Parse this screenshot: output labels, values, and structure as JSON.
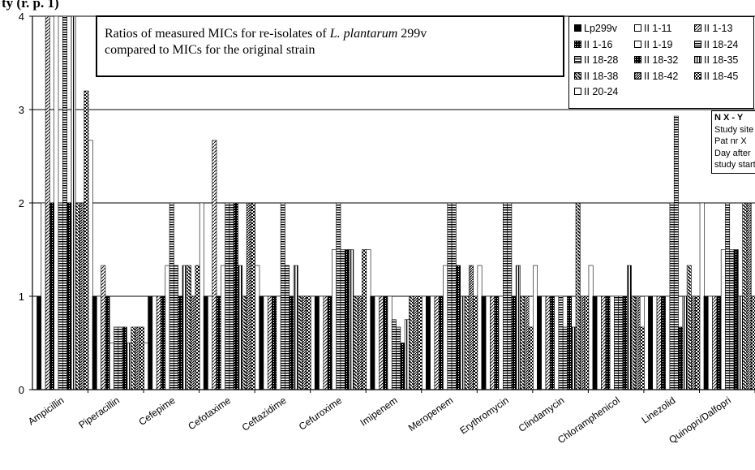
{
  "page_title": "ty (r. p. 1)",
  "chart_data": {
    "type": "bar",
    "title": "Ratios of measured MICs for re-isolates of L. plantarum 299v compared to MICs for the original strain",
    "title_plain": "Ratios of measured MICs for re-isolates of ",
    "title_italic": "L. plantarum",
    "title_tail": " 299v",
    "title_line2": "compared to MICs for the original strain",
    "ylim": [
      0,
      4
    ],
    "yticks": [
      "0",
      "1",
      "2",
      "3",
      "4"
    ],
    "grid": true,
    "legend_position": "top-right",
    "categories": [
      "Ampicillin",
      "Piperacillin",
      "Cefepime",
      "Cefotaxime",
      "Ceftazidime",
      "Cefuroxime",
      "Imipenem",
      "Meropenem",
      "Erythromycin",
      "Clindamycin",
      "Chloramphenicol",
      "Linezolid",
      "Quinopri/Dalfopri"
    ],
    "series": [
      {
        "name": "Lp299v",
        "pattern": "solid",
        "values": [
          1,
          1,
          1,
          1,
          1,
          1,
          1,
          1,
          1,
          1,
          1,
          1,
          1
        ]
      },
      {
        "name": "II 1-11",
        "pattern": "white",
        "values": [
          2,
          1,
          1,
          1,
          1,
          1,
          1,
          1,
          1,
          1,
          1,
          1,
          1
        ]
      },
      {
        "name": "II 1-13",
        "pattern": "diag",
        "values": [
          4,
          1.33,
          1,
          2.67,
          1,
          1,
          1,
          1,
          1,
          1,
          1,
          1,
          1
        ]
      },
      {
        "name": "II 1-16",
        "pattern": "dot",
        "values": [
          2,
          1,
          1,
          1,
          1,
          1,
          1,
          1,
          1,
          1,
          1,
          1,
          1
        ]
      },
      {
        "name": "II 1-19",
        "pattern": "white",
        "values": [
          4,
          0.5,
          1.33,
          1.33,
          1,
          1.5,
          1,
          1.33,
          1,
          1,
          1,
          1,
          1.5
        ]
      },
      {
        "name": "II 18-24",
        "pattern": "hstripe",
        "values": [
          2,
          0.67,
          2,
          2,
          2,
          2,
          0.75,
          2,
          2,
          1,
          1,
          2,
          2
        ]
      },
      {
        "name": "II 18-28",
        "pattern": "hstripe",
        "values": [
          4,
          0.67,
          1.33,
          2,
          1.33,
          1.5,
          0.67,
          2,
          2,
          0.67,
          1,
          2.93,
          1.5
        ]
      },
      {
        "name": "II 18-32",
        "pattern": "dot",
        "values": [
          2,
          0.67,
          1,
          2,
          1,
          1.5,
          0.5,
          1.33,
          1,
          1,
          1,
          0.67,
          1.5
        ]
      },
      {
        "name": "II 18-35",
        "pattern": "vstripe",
        "values": [
          4,
          0.5,
          1.33,
          1.33,
          1.33,
          1.5,
          0.75,
          1,
          1.33,
          0.67,
          1.33,
          1,
          1
        ]
      },
      {
        "name": "II 18-38",
        "pattern": "diagb",
        "values": [
          2,
          0.67,
          1.33,
          1,
          1,
          1,
          1,
          1,
          1,
          2,
          1,
          1.33,
          2
        ]
      },
      {
        "name": "II 18-42",
        "pattern": "diagd",
        "values": [
          2,
          0.67,
          1,
          2,
          1,
          1,
          1,
          1.33,
          1,
          1,
          1,
          1,
          2
        ]
      },
      {
        "name": "II 18-45",
        "pattern": "check",
        "values": [
          3.2,
          0.67,
          1.33,
          2,
          1,
          1.5,
          1,
          1,
          0.67,
          1,
          0.67,
          1,
          1
        ]
      },
      {
        "name": "II 20-24",
        "pattern": "white",
        "values": [
          2.67,
          0.5,
          2,
          1.33,
          1,
          1.5,
          1,
          1.33,
          1.33,
          1.33,
          1,
          2,
          2
        ]
      }
    ]
  },
  "legend": {
    "items": [
      {
        "label": "Lp299v",
        "pattern": "solid"
      },
      {
        "label": "II 1-11",
        "pattern": "white"
      },
      {
        "label": "II 1-13",
        "pattern": "diag"
      },
      {
        "label": "II 1-16",
        "pattern": "dot"
      },
      {
        "label": "II 1-19",
        "pattern": "white"
      },
      {
        "label": "II 18-24",
        "pattern": "hstripe"
      },
      {
        "label": "II 18-28",
        "pattern": "hstripe"
      },
      {
        "label": "II 18-32",
        "pattern": "dot"
      },
      {
        "label": "II 18-35",
        "pattern": "vstripe"
      },
      {
        "label": "II 18-38",
        "pattern": "diagb"
      },
      {
        "label": "II 18-42",
        "pattern": "diagd"
      },
      {
        "label": "II 18-45",
        "pattern": "check"
      },
      {
        "label": "II 20-24",
        "pattern": "white"
      }
    ]
  },
  "key_box": {
    "heading": "N   X - Y",
    "line1": "Study site N",
    "line2": "Pat nr X",
    "line3": "Day after",
    "line4": "study start Y"
  }
}
